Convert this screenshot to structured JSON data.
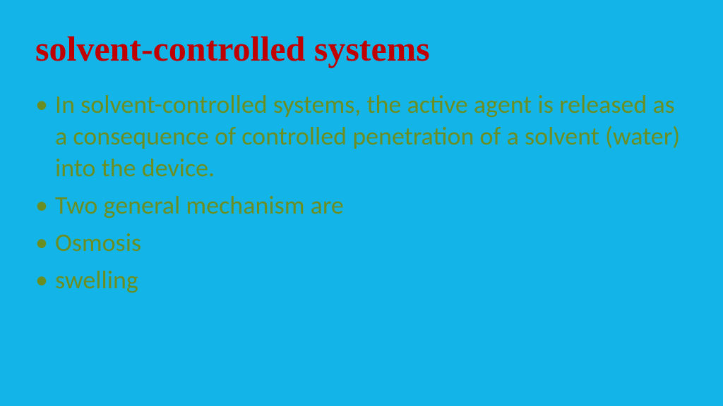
{
  "slide": {
    "background_color": "#13b5e8",
    "title": {
      "text": "solvent-controlled systems",
      "color": "#c00000",
      "font_family": "Times New Roman",
      "font_size_pt": 40,
      "font_weight": "bold"
    },
    "body": {
      "color": "#6b8e23",
      "font_size_pt": 28,
      "bullet_char": "•",
      "items": [
        "In solvent-controlled systems, the active agent is released as a consequence of controlled penetration of a solvent (water) into the device.",
        "Two general mechanism are",
        "Osmosis",
        "swelling"
      ]
    }
  }
}
